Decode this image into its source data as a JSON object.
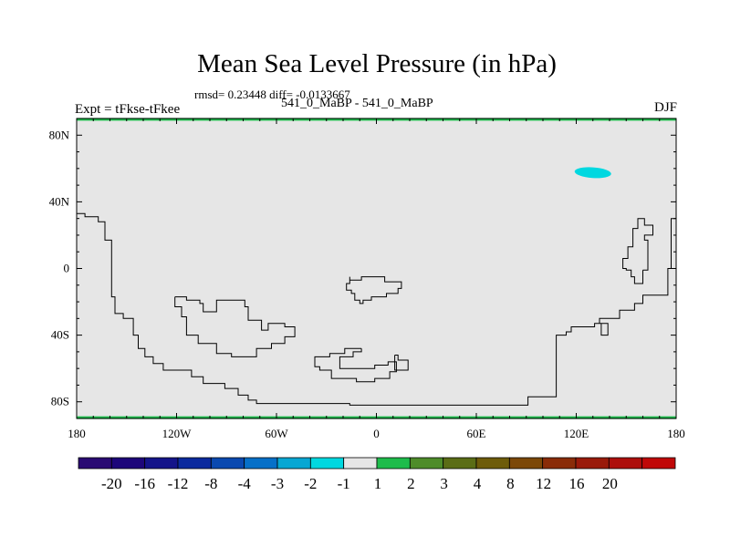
{
  "chart_data": {
    "type": "heatmap",
    "title": "Mean Sea Level Pressure (in hPa)",
    "stats_text": "rmsd= 0.23448 diff= -0.0133667",
    "left_label": "Expt = tFkse-tFkee",
    "center_label": "541_0_MaBP - 541_0_MaBP",
    "right_label": "DJF",
    "xlim": [
      -180,
      180
    ],
    "ylim": [
      -90,
      90
    ],
    "x_ticks": [
      {
        "value": -180,
        "label": "180"
      },
      {
        "value": -120,
        "label": "120W"
      },
      {
        "value": -60,
        "label": "60W"
      },
      {
        "value": 0,
        "label": "0"
      },
      {
        "value": 60,
        "label": "60E"
      },
      {
        "value": 120,
        "label": "120E"
      },
      {
        "value": 180,
        "label": "180"
      }
    ],
    "y_ticks": [
      {
        "value": 80,
        "label": "80N"
      },
      {
        "value": 40,
        "label": "40N"
      },
      {
        "value": 0,
        "label": "0"
      },
      {
        "value": -40,
        "label": "40S"
      },
      {
        "value": -80,
        "label": "80S"
      }
    ],
    "field": {
      "background_bin": "-1 to 1",
      "background_color": "#e6e6e6",
      "anomalies": [
        {
          "description": "small negative anomaly (-2 to -1)",
          "lon": 130,
          "lat": 57.5,
          "lon_halfwidth": 11,
          "lat_halfwidth": 3.2,
          "color": "#00d8e0"
        },
        {
          "description": "positive anomaly band (1 to 2)",
          "lon_range": [
            -180,
            180
          ],
          "lat": 89.5,
          "color": "#1ebc4b"
        },
        {
          "description": "positive anomaly band (1 to 2)",
          "lon_range": [
            -180,
            180
          ],
          "lat": -89.5,
          "color": "#1ebc4b"
        }
      ]
    },
    "coastlines": [
      [
        [
          -180,
          33
        ],
        [
          -175,
          33
        ],
        [
          -175,
          31
        ],
        [
          -167,
          31
        ],
        [
          -167,
          28
        ],
        [
          -163,
          28
        ],
        [
          -163,
          17
        ],
        [
          -159,
          17
        ],
        [
          -159,
          -17
        ],
        [
          -157,
          -17
        ],
        [
          -157,
          -27
        ],
        [
          -152,
          -27
        ],
        [
          -152,
          -30
        ],
        [
          -146,
          -30
        ],
        [
          -146,
          -40
        ],
        [
          -143,
          -40
        ],
        [
          -143,
          -48
        ],
        [
          -139,
          -48
        ],
        [
          -139,
          -53
        ],
        [
          -134,
          -53
        ],
        [
          -134,
          -57
        ],
        [
          -128,
          -57
        ],
        [
          -128,
          -61
        ],
        [
          -111,
          -61
        ],
        [
          -111,
          -65
        ],
        [
          -104,
          -65
        ],
        [
          -104,
          -69
        ],
        [
          -91,
          -69
        ],
        [
          -91,
          -72
        ],
        [
          -83,
          -72
        ],
        [
          -83,
          -76
        ],
        [
          -77,
          -76
        ],
        [
          -77,
          -79
        ],
        [
          -72,
          -79
        ],
        [
          -72,
          -81
        ],
        [
          -16,
          -81
        ],
        [
          -16,
          -82
        ],
        [
          91,
          -82
        ],
        [
          91,
          -77
        ],
        [
          108,
          -77
        ],
        [
          108,
          -40
        ],
        [
          114,
          -40
        ],
        [
          114,
          -38
        ],
        [
          117,
          -38
        ],
        [
          117,
          -35
        ],
        [
          131,
          -35
        ],
        [
          131,
          -33
        ],
        [
          135,
          -33
        ],
        [
          135,
          -40
        ],
        [
          139,
          -40
        ],
        [
          139,
          -33
        ],
        [
          134,
          -33
        ],
        [
          134,
          -30
        ],
        [
          146,
          -30
        ],
        [
          146,
          -25
        ],
        [
          155,
          -25
        ],
        [
          155,
          -21
        ],
        [
          160,
          -21
        ],
        [
          160,
          -16
        ],
        [
          175,
          -16
        ],
        [
          175,
          0
        ],
        [
          177,
          0
        ],
        [
          177,
          30
        ],
        [
          180,
          30
        ]
      ],
      [
        [
          -121,
          -17
        ],
        [
          -114,
          -17
        ],
        [
          -114,
          -19
        ],
        [
          -106,
          -19
        ],
        [
          -106,
          -21
        ],
        [
          -104,
          -21
        ],
        [
          -104,
          -26
        ],
        [
          -96,
          -26
        ],
        [
          -96,
          -19
        ],
        [
          -79,
          -19
        ],
        [
          -79,
          -23
        ],
        [
          -77,
          -23
        ],
        [
          -77,
          -31
        ],
        [
          -69,
          -31
        ],
        [
          -69,
          -37
        ],
        [
          -65,
          -37
        ],
        [
          -65,
          -33
        ],
        [
          -55,
          -33
        ],
        [
          -55,
          -35
        ],
        [
          -49,
          -35
        ],
        [
          -49,
          -41
        ],
        [
          -55,
          -41
        ],
        [
          -55,
          -45
        ],
        [
          -63,
          -45
        ],
        [
          -63,
          -48
        ],
        [
          -72,
          -48
        ],
        [
          -72,
          -53
        ],
        [
          -87,
          -53
        ],
        [
          -87,
          -51
        ],
        [
          -96,
          -51
        ],
        [
          -96,
          -45
        ],
        [
          -107,
          -45
        ],
        [
          -107,
          -40
        ],
        [
          -114,
          -40
        ],
        [
          -114,
          -29
        ],
        [
          -117,
          -29
        ],
        [
          -117,
          -23
        ],
        [
          -121,
          -23
        ],
        [
          -121,
          -17
        ]
      ],
      [
        [
          -16,
          -5
        ],
        [
          -16,
          -7
        ],
        [
          -9,
          -7
        ],
        [
          -9,
          -5
        ],
        [
          5,
          -5
        ],
        [
          5,
          -8
        ],
        [
          15,
          -8
        ],
        [
          15,
          -12
        ],
        [
          13,
          -12
        ],
        [
          13,
          -15
        ],
        [
          6,
          -15
        ],
        [
          6,
          -17
        ],
        [
          -3,
          -17
        ],
        [
          -3,
          -19
        ],
        [
          -8,
          -19
        ],
        [
          -8,
          -21
        ],
        [
          -10,
          -21
        ],
        [
          -10,
          -19
        ],
        [
          -13,
          -19
        ],
        [
          -13,
          -15
        ],
        [
          -15,
          -15
        ],
        [
          -15,
          -13
        ],
        [
          -18,
          -13
        ],
        [
          -18,
          -9
        ],
        [
          -16,
          -9
        ],
        [
          -16,
          -5
        ]
      ],
      [
        [
          -9,
          -48
        ],
        [
          -9,
          -50
        ],
        [
          -14,
          -50
        ],
        [
          -14,
          -53
        ],
        [
          -22,
          -53
        ],
        [
          -22,
          -60
        ],
        [
          -1,
          -60
        ],
        [
          -1,
          -58
        ],
        [
          7,
          -58
        ],
        [
          7,
          -56
        ],
        [
          12,
          -56
        ],
        [
          12,
          -62
        ],
        [
          8,
          -62
        ],
        [
          8,
          -66
        ],
        [
          -1,
          -66
        ],
        [
          -1,
          -68
        ],
        [
          -12,
          -68
        ],
        [
          -12,
          -66
        ],
        [
          -27,
          -66
        ],
        [
          -27,
          -61
        ],
        [
          -34,
          -61
        ],
        [
          -34,
          -59
        ],
        [
          -37,
          -59
        ],
        [
          -37,
          -53
        ],
        [
          -28,
          -53
        ],
        [
          -28,
          -51
        ],
        [
          -19,
          -51
        ],
        [
          -19,
          -48
        ],
        [
          -9,
          -48
        ]
      ],
      [
        [
          11,
          -52
        ],
        [
          13,
          -52
        ],
        [
          13,
          -55
        ],
        [
          19,
          -55
        ],
        [
          19,
          -61
        ],
        [
          11,
          -61
        ],
        [
          11,
          -52
        ]
      ],
      [
        [
          160,
          -1
        ],
        [
          163,
          -1
        ],
        [
          163,
          17
        ],
        [
          161,
          17
        ],
        [
          161,
          20
        ],
        [
          166,
          20
        ],
        [
          166,
          26
        ],
        [
          161,
          26
        ],
        [
          161,
          30
        ],
        [
          157,
          30
        ],
        [
          157,
          24
        ],
        [
          154,
          24
        ],
        [
          154,
          13
        ],
        [
          151,
          13
        ],
        [
          151,
          6
        ],
        [
          148,
          6
        ],
        [
          148,
          0
        ],
        [
          150,
          0
        ],
        [
          150,
          -1
        ],
        [
          153,
          -1
        ],
        [
          153,
          -5
        ],
        [
          155,
          -5
        ],
        [
          155,
          -9
        ],
        [
          160,
          -9
        ],
        [
          160,
          -1
        ]
      ]
    ],
    "colorbar": {
      "colors": [
        "#2a0a73",
        "#1d067a",
        "#14148a",
        "#0b2a9e",
        "#0a49b0",
        "#0670c8",
        "#07a7d3",
        "#00d8e0",
        "#e6e6e6",
        "#1ebc4b",
        "#4e8c2a",
        "#5b6d16",
        "#6e5c0a",
        "#7c4808",
        "#8a2c08",
        "#9a1a0a",
        "#ad0f0c",
        "#c00808"
      ],
      "labels": [
        "-20",
        "-16",
        "-12",
        "-8",
        "-4",
        "-3",
        "-2",
        "-1",
        "1",
        "2",
        "3",
        "4",
        "8",
        "12",
        "16",
        "20"
      ]
    }
  }
}
